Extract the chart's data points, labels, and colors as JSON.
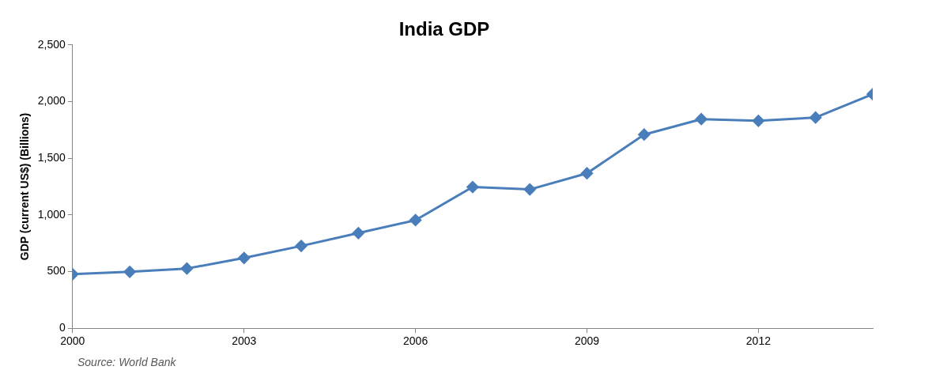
{
  "chart_data": {
    "type": "line",
    "title": "India GDP",
    "ylabel": "GDP (current US$) (Billions)",
    "x": [
      2000,
      2001,
      2002,
      2003,
      2004,
      2005,
      2006,
      2007,
      2008,
      2009,
      2010,
      2011,
      2012,
      2013,
      2014
    ],
    "series": [
      {
        "color": "#4a7ebb",
        "values": [
          477,
          498,
          527,
          620,
          726,
          840,
          954,
          1246,
          1225,
          1367,
          1709,
          1845,
          1830,
          1859,
          2065
        ]
      }
    ],
    "xlim": [
      2000,
      2014
    ],
    "xticks": [
      2000,
      2003,
      2006,
      2009,
      2012
    ],
    "ylim": [
      0,
      2500
    ],
    "yticks": [
      {
        "value": 0,
        "label": "0"
      },
      {
        "value": 500,
        "label": "500"
      },
      {
        "value": 1000,
        "label": "1,000"
      },
      {
        "value": 1500,
        "label": "1,500"
      },
      {
        "value": 2000,
        "label": "2,000"
      },
      {
        "value": 2500,
        "label": "2,500"
      }
    ],
    "grid": false,
    "legend": false,
    "marker": "diamond",
    "line_style": "solid",
    "annotations": [
      "Source: World Bank"
    ]
  }
}
